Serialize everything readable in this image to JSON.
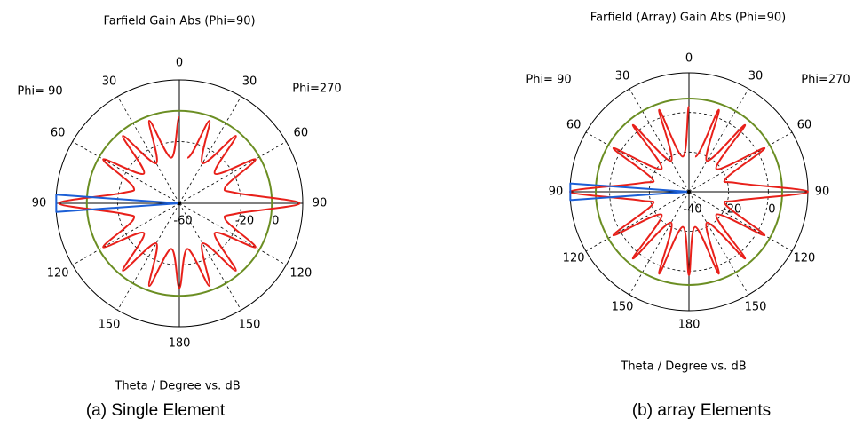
{
  "chart_data": [
    {
      "type": "polar",
      "title": "Farfield Gain Abs (Phi=90)",
      "phi_labels": [
        "Phi= 90",
        "Phi=270"
      ],
      "angle_ticks": [
        0,
        30,
        60,
        90,
        120,
        150,
        180,
        {
          "value": 210,
          "label": "150"
        },
        {
          "value": 240,
          "label": "120"
        },
        {
          "value": 270,
          "label": "90"
        },
        {
          "value": 300,
          "label": "60"
        },
        {
          "value": 330,
          "label": "30"
        }
      ],
      "rlim": [
        -60,
        20
      ],
      "rticks": [
        -60,
        -20,
        0
      ],
      "reference_circle": {
        "value": 0,
        "color": "#6b8e23"
      },
      "series": [
        {
          "color": "#e8201a",
          "theta": [
            0,
            10,
            20,
            30,
            40,
            50,
            60,
            70,
            80,
            90,
            100,
            110,
            120,
            130,
            140,
            150,
            160,
            170,
            180,
            190,
            200,
            210,
            220,
            230,
            240,
            250,
            260,
            270,
            280,
            290,
            300,
            310,
            320,
            330,
            340,
            350
          ],
          "values": [
            -4,
            -30,
            -3,
            -30,
            -3,
            -30,
            -3,
            -28,
            -22,
            18,
            -22,
            -28,
            -3,
            -30,
            -3,
            -30,
            -3,
            -30,
            -5,
            -30,
            -3,
            -30,
            -3,
            -30,
            -3,
            -28,
            -22,
            18,
            -22,
            -28,
            -3,
            -30,
            -3,
            -30,
            -3,
            -30
          ]
        },
        {
          "color": "#1c5fd6",
          "theta": [
            90,
            86,
            94
          ],
          "values": [
            -60,
            20,
            20
          ]
        }
      ],
      "axis_label": "Theta / Degree vs. dB",
      "caption": "(a) Single Element"
    },
    {
      "type": "polar",
      "title": "Farfield (Array) Gain Abs (Phi=90)",
      "phi_labels": [
        "Phi= 90",
        "Phi=270"
      ],
      "angle_ticks": [
        0,
        30,
        60,
        90,
        120,
        150,
        180,
        {
          "value": 210,
          "label": "150"
        },
        {
          "value": 240,
          "label": "120"
        },
        {
          "value": 270,
          "label": "90"
        },
        {
          "value": 300,
          "label": "60"
        },
        {
          "value": 330,
          "label": "30"
        }
      ],
      "rlim": [
        -40,
        20
      ],
      "rticks": [
        -40,
        -20,
        0
      ],
      "reference_circle": {
        "value": 7,
        "color": "#6b8e23"
      },
      "series": [
        {
          "color": "#e8201a",
          "theta": [
            0,
            10,
            20,
            30,
            40,
            50,
            60,
            70,
            80,
            90,
            100,
            110,
            120,
            130,
            140,
            150,
            160,
            170,
            180,
            190,
            200,
            210,
            220,
            230,
            240,
            250,
            260,
            270,
            280,
            290,
            300,
            310,
            320,
            330,
            340,
            350
          ],
          "values": [
            3,
            -22,
            4,
            -22,
            4,
            -22,
            4,
            -20,
            -15,
            20,
            -15,
            -20,
            4,
            -22,
            4,
            -22,
            4,
            -22,
            2,
            -22,
            4,
            -22,
            4,
            -22,
            4,
            -20,
            -15,
            20,
            -15,
            -20,
            4,
            -22,
            4,
            -22,
            4,
            -22
          ]
        },
        {
          "color": "#1c5fd6",
          "theta": [
            90,
            86,
            94
          ],
          "values": [
            -40,
            20,
            20
          ]
        }
      ],
      "axis_label": "Theta / Degree vs. dB",
      "caption": "(b) array Elements"
    }
  ]
}
